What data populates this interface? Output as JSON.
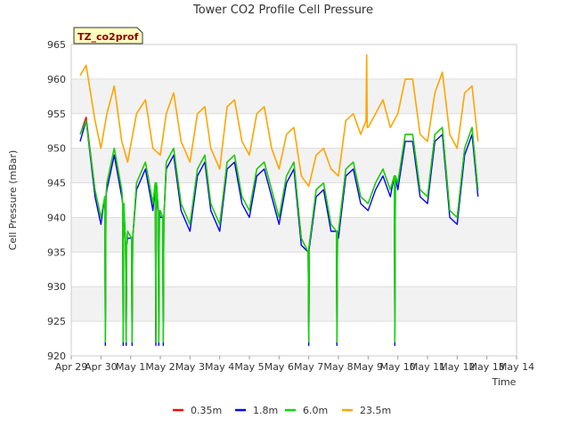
{
  "chart_data": {
    "type": "line",
    "title": "Tower CO2 Profile Cell Pressure",
    "xlabel": "Time",
    "ylabel": "Cell Pressure (mBar)",
    "badge": "TZ_co2prof",
    "ylim": [
      920,
      965
    ],
    "yticks": [
      920,
      925,
      930,
      935,
      940,
      945,
      950,
      955,
      960,
      965
    ],
    "xlim": [
      0,
      15
    ],
    "x_units": "days since Apr 29",
    "xtick_labels": [
      "Apr 29",
      "Apr 30",
      "May 1",
      "May 2",
      "May 3",
      "May 4",
      "May 5",
      "May 6",
      "May 7",
      "May 8",
      "May 9",
      "May 10",
      "May 11",
      "May 12",
      "May 13",
      "May 14"
    ],
    "grid": true,
    "legend_position": "bottom",
    "x": [
      0.3,
      0.5,
      0.8,
      1.0,
      1.2,
      1.45,
      1.7,
      1.9,
      2.2,
      2.5,
      2.75,
      3.0,
      3.2,
      3.45,
      3.7,
      4.0,
      4.25,
      4.5,
      4.7,
      5.0,
      5.25,
      5.5,
      5.75,
      6.0,
      6.25,
      6.5,
      6.75,
      7.0,
      7.25,
      7.5,
      7.75,
      8.0,
      8.25,
      8.5,
      8.75,
      9.0,
      9.25,
      9.5,
      9.75,
      10.0,
      10.25,
      10.5,
      10.75,
      11.0,
      11.25,
      11.5,
      11.75,
      12.0,
      12.25,
      12.5,
      12.75,
      13.0,
      13.25,
      13.5,
      13.7
    ],
    "series": [
      {
        "name": "0.35m",
        "color": "#ff0000",
        "values": [
          952,
          954.5,
          944,
          940,
          945,
          950,
          944,
          938,
          945,
          948,
          942,
          941,
          948,
          950,
          942,
          939,
          947,
          949,
          942,
          939,
          948,
          949,
          943,
          941,
          947,
          948,
          944,
          940,
          946,
          948,
          937,
          935.5,
          944,
          945,
          939,
          938,
          947,
          948,
          943,
          942,
          945,
          947,
          944,
          945,
          952,
          952,
          944,
          943,
          952,
          953,
          941,
          940,
          950,
          953,
          944
        ]
      },
      {
        "name": "1.8m",
        "color": "#0000ff",
        "values": [
          951,
          954,
          943,
          939,
          944,
          949,
          943,
          937,
          944,
          947,
          941,
          940,
          947,
          949,
          941,
          938,
          946,
          948,
          941,
          938,
          947,
          948,
          942,
          940,
          946,
          947,
          943,
          939,
          945,
          947,
          936,
          935,
          943,
          944,
          938,
          937,
          946,
          947,
          942,
          941,
          944,
          946,
          943,
          944,
          951,
          951,
          943,
          942,
          951,
          952,
          940,
          939,
          949,
          952,
          943
        ]
      },
      {
        "name": "6.0m",
        "color": "#00dd00",
        "values": [
          952,
          954,
          944,
          940,
          945,
          950,
          944,
          938,
          945,
          948,
          942,
          941,
          948,
          950,
          942,
          939,
          947,
          949,
          942,
          939,
          948,
          949,
          943,
          941,
          947,
          948,
          944,
          940,
          946,
          948,
          937,
          935.5,
          944,
          945,
          939,
          938,
          947,
          948,
          943,
          942,
          945,
          947,
          944,
          945,
          952,
          952,
          944,
          943,
          952,
          953,
          941,
          940,
          950,
          953,
          944
        ]
      },
      {
        "name": "23.5m",
        "color": "#ffa500",
        "values": [
          960.5,
          962,
          954,
          950,
          955,
          959,
          951,
          948,
          955,
          957,
          950,
          949,
          955,
          958,
          951,
          948,
          955,
          956,
          950,
          947,
          956,
          957,
          951,
          949,
          955,
          956,
          950,
          947,
          952,
          953,
          946,
          944.5,
          949,
          950,
          947,
          946,
          954,
          955,
          952,
          953,
          955,
          957,
          953,
          955,
          960,
          960,
          952,
          951,
          958,
          961,
          952,
          950,
          958,
          959,
          951
        ]
      }
    ],
    "dropouts": [
      {
        "x": 1.15,
        "values": [
          921.5,
          943
        ]
      },
      {
        "x": 1.75,
        "values": [
          921.5,
          942
        ]
      },
      {
        "x": 1.85,
        "values": [
          921.5,
          936
        ]
      },
      {
        "x": 2.05,
        "values": [
          921.5,
          937
        ]
      },
      {
        "x": 2.85,
        "values": [
          921.5,
          945
        ]
      },
      {
        "x": 2.95,
        "values": [
          921.5,
          941
        ]
      },
      {
        "x": 3.1,
        "values": [
          921.5,
          940
        ]
      },
      {
        "x": 8.0,
        "values": [
          921.5,
          935
        ]
      },
      {
        "x": 8.95,
        "values": [
          921.5,
          938
        ]
      },
      {
        "x": 10.9,
        "values": [
          921.5,
          946
        ]
      }
    ],
    "spike_23_5m": {
      "x": 9.95,
      "value": 963.5
    }
  }
}
